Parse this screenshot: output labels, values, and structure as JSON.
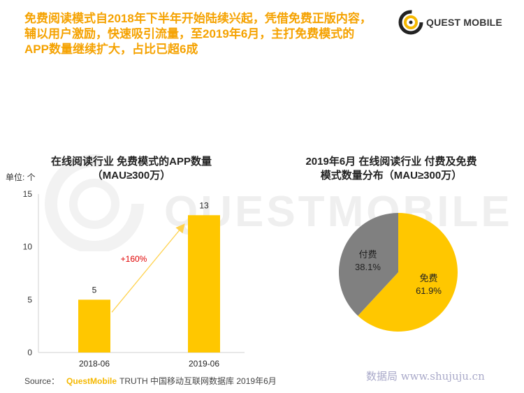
{
  "headline": {
    "lines": [
      "免费阅读模式自2018年下半年开始陆续兴起，凭借免费正版内容，",
      "辅以用户激励，快速吸引流量，至2019年6月，主打免费模式的",
      "APP数量继续扩大，占比已超6成"
    ]
  },
  "logo": {
    "text": "QUEST MOBILE"
  },
  "watermark": {
    "text": "QUESTMOBILE"
  },
  "colors": {
    "accent": "#f5a200",
    "bar": "#ffc700",
    "pie_gray": "#808080",
    "arrow": "#ffd24d",
    "growth_label": "#e00000"
  },
  "chart_data": [
    {
      "type": "bar",
      "title_line1": "在线阅读行业 免费模式的APP数量",
      "title_line2": "（MAU≥300万）",
      "unit_label": "单位: 个",
      "categories": [
        "2018-06",
        "2019-06"
      ],
      "values": [
        5,
        13
      ],
      "ylim": [
        0,
        15
      ],
      "yticks": [
        0,
        5,
        10,
        15
      ],
      "growth_annotation": "+160%",
      "grid": false,
      "legend": "none"
    },
    {
      "type": "pie",
      "title_line1": "2019年6月 在线阅读行业 付费及免费",
      "title_line2": "模式数量分布（MAU≥300万）",
      "slices": [
        {
          "label": "免费",
          "value": 61.9,
          "value_label": "61.9%",
          "color": "#ffc700"
        },
        {
          "label": "付费",
          "value": 38.1,
          "value_label": "38.1%",
          "color": "#808080"
        }
      ],
      "legend": "none"
    }
  ],
  "footer": {
    "source_prefix": "Source：",
    "source_brand": "QuestMobile",
    "source_rest": "TRUTH 中国移动互联网数据库 2019年6月",
    "credit": "数据局 www.shujuju.cn"
  }
}
